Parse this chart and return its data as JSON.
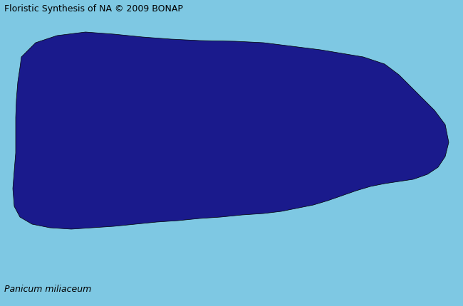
{
  "title_text": "Floristic Synthesis of NA © 2009 BONAP",
  "bottom_text": "Panicum miliaceum",
  "bg_color": "#7ec8e3",
  "ocean_color": "#7ec8e3",
  "mexico_color": "#b0b0b0",
  "county_dark_blue": "#1a1a8c",
  "county_cyan": "#00e5ff",
  "county_magenta": "#ff00ff",
  "county_gold": "#b8860b",
  "county_border": "#2a2a6a",
  "figsize": [
    6.5,
    4.3
  ],
  "dpi": 100
}
